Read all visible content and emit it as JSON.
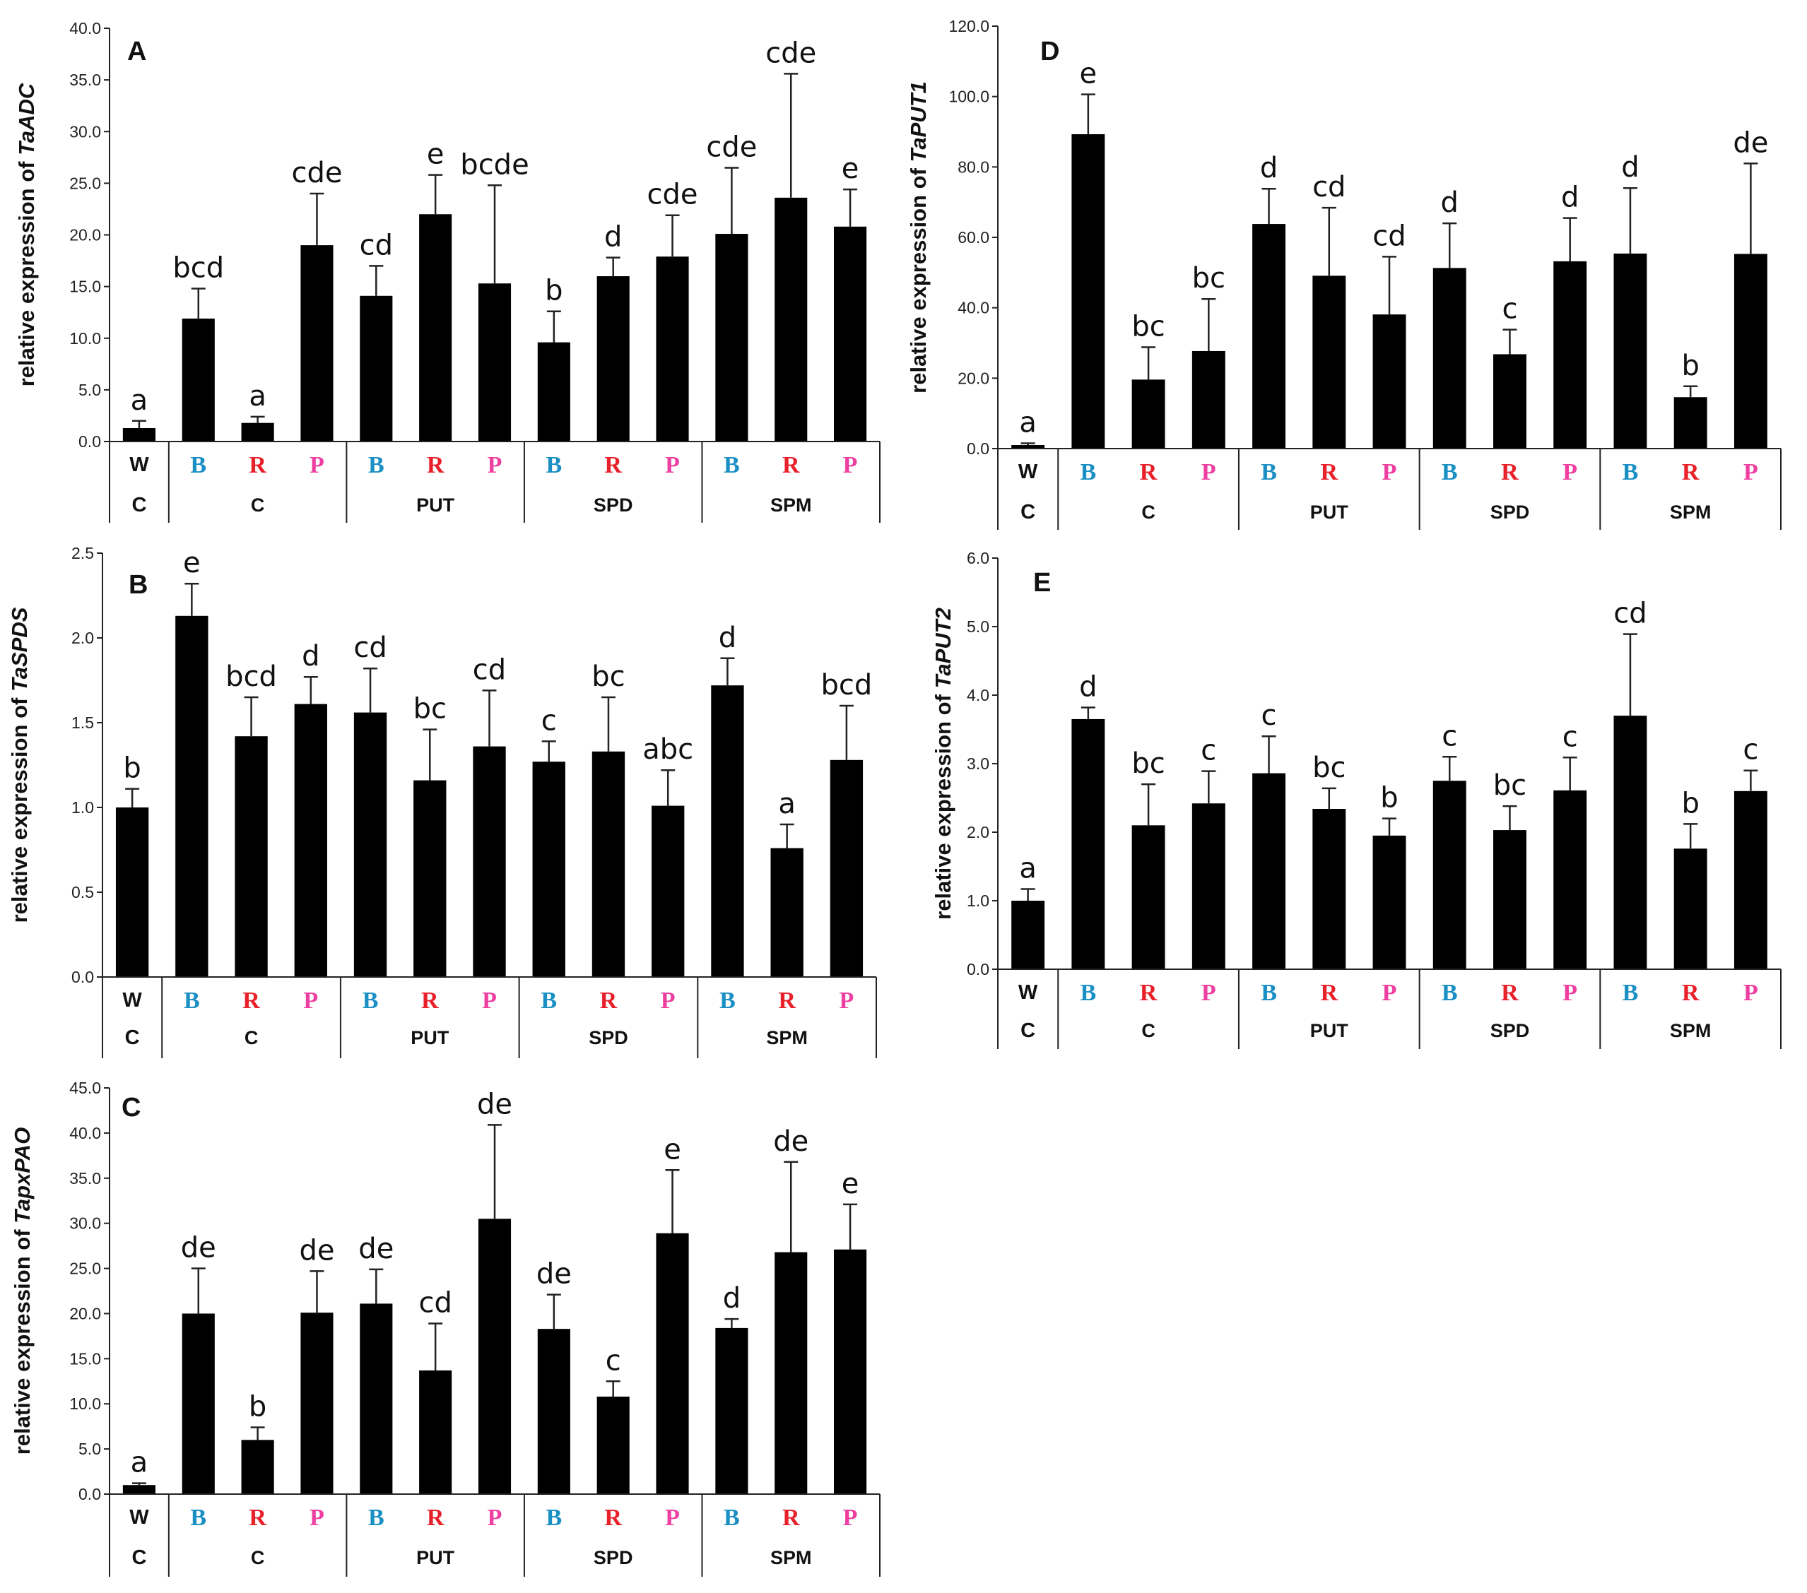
{
  "figure": {
    "light_colors": {
      "B": "#1a8fc4",
      "R": "#e8202a",
      "P": "#ee3fa0"
    },
    "wc_labels": [
      "W",
      "C"
    ],
    "light_labels": [
      "B",
      "R",
      "P"
    ],
    "groups": [
      "C",
      "PUT",
      "SPD",
      "SPM"
    ]
  },
  "chart_data": [
    {
      "type": "bar",
      "panel": "A",
      "ylabel_prefix": "relative expression of ",
      "gene": "TaADC",
      "ylim": [
        0,
        40
      ],
      "yticks": [
        "0.0",
        "5.0",
        "10.0",
        "15.0",
        "20.0",
        "25.0",
        "30.0",
        "35.0",
        "40.0"
      ],
      "categories": [
        "WC",
        "C-B",
        "C-R",
        "C-P",
        "PUT-B",
        "PUT-R",
        "PUT-P",
        "SPD-B",
        "SPD-R",
        "SPD-P",
        "SPM-B",
        "SPM-R",
        "SPM-P"
      ],
      "values": [
        1.3,
        11.9,
        1.8,
        19.0,
        14.1,
        22.0,
        15.3,
        9.6,
        16.0,
        17.9,
        20.1,
        23.6,
        20.8
      ],
      "errors": [
        0.7,
        2.9,
        0.6,
        5.0,
        2.9,
        3.8,
        9.5,
        3.0,
        1.8,
        4.0,
        6.4,
        12.0,
        3.6
      ],
      "significance": [
        "a",
        "bcd",
        "a",
        "cde",
        "cd",
        "e",
        "bcde",
        "b",
        "d",
        "cde",
        "cde",
        "cde",
        "e"
      ]
    },
    {
      "type": "bar",
      "panel": "B",
      "ylabel_prefix": "relative expression of ",
      "gene": "TaSPDS",
      "ylim": [
        0,
        2.5
      ],
      "yticks": [
        "0.0",
        "0.5",
        "1.0",
        "1.5",
        "2.0",
        "2.5"
      ],
      "categories": [
        "WC",
        "C-B",
        "C-R",
        "C-P",
        "PUT-B",
        "PUT-R",
        "PUT-P",
        "SPD-B",
        "SPD-R",
        "SPD-P",
        "SPM-B",
        "SPM-R",
        "SPM-P"
      ],
      "values": [
        1.0,
        2.13,
        1.42,
        1.61,
        1.56,
        1.16,
        1.36,
        1.27,
        1.33,
        1.01,
        1.72,
        0.76,
        1.28
      ],
      "errors": [
        0.11,
        0.19,
        0.23,
        0.16,
        0.26,
        0.3,
        0.33,
        0.12,
        0.32,
        0.21,
        0.16,
        0.14,
        0.32
      ],
      "significance": [
        "b",
        "e",
        "bcd",
        "d",
        "cd",
        "bc",
        "cd",
        "c",
        "bc",
        "abc",
        "d",
        "a",
        "bcd"
      ]
    },
    {
      "type": "bar",
      "panel": "C",
      "ylabel_prefix": "relative expression of ",
      "gene": "TapxPAO",
      "ylim": [
        0,
        45
      ],
      "yticks": [
        "0.0",
        "5.0",
        "10.0",
        "15.0",
        "20.0",
        "25.0",
        "30.0",
        "35.0",
        "40.0",
        "45.0"
      ],
      "categories": [
        "WC",
        "C-B",
        "C-R",
        "C-P",
        "PUT-B",
        "PUT-R",
        "PUT-P",
        "SPD-B",
        "SPD-R",
        "SPD-P",
        "SPM-B",
        "SPM-R",
        "SPM-P"
      ],
      "values": [
        1.0,
        20.0,
        6.0,
        20.1,
        21.1,
        13.7,
        30.5,
        18.3,
        10.8,
        28.9,
        18.4,
        26.8,
        27.1
      ],
      "errors": [
        0.2,
        5.0,
        1.4,
        4.6,
        3.8,
        5.2,
        10.4,
        3.8,
        1.7,
        7.0,
        1.0,
        10.0,
        5.0
      ],
      "significance": [
        "a",
        "de",
        "b",
        "de",
        "de",
        "cd",
        "de",
        "de",
        "c",
        "e",
        "d",
        "de",
        "e"
      ]
    },
    {
      "type": "bar",
      "panel": "D",
      "ylabel_prefix": "relative expression of ",
      "gene": "TaPUT1",
      "ylim": [
        0,
        120
      ],
      "yticks": [
        "0.0",
        "20.0",
        "40.0",
        "60.0",
        "80.0",
        "100.0",
        "120.0"
      ],
      "categories": [
        "WC",
        "C-B",
        "C-R",
        "C-P",
        "PUT-B",
        "PUT-R",
        "PUT-P",
        "SPD-B",
        "SPD-R",
        "SPD-P",
        "SPM-B",
        "SPM-R",
        "SPM-P"
      ],
      "values": [
        1.0,
        89.3,
        19.6,
        27.7,
        63.8,
        49.1,
        38.1,
        51.3,
        26.8,
        53.2,
        55.4,
        14.6,
        55.3
      ],
      "errors": [
        0.5,
        11.3,
        9.2,
        14.8,
        10.0,
        19.3,
        16.4,
        12.7,
        7.0,
        12.3,
        18.6,
        3.1,
        25.7
      ],
      "significance": [
        "a",
        "e",
        "bc",
        "bc",
        "d",
        "cd",
        "cd",
        "d",
        "c",
        "d",
        "d",
        "b",
        "de"
      ]
    },
    {
      "type": "bar",
      "panel": "E",
      "ylabel_prefix": "relative expression of ",
      "gene": "TaPUT2",
      "ylim": [
        0,
        6
      ],
      "yticks": [
        "0.0",
        "1.0",
        "2.0",
        "3.0",
        "4.0",
        "5.0",
        "6.0"
      ],
      "categories": [
        "WC",
        "C-B",
        "C-R",
        "C-P",
        "PUT-B",
        "PUT-R",
        "PUT-P",
        "SPD-B",
        "SPD-R",
        "SPD-P",
        "SPM-B",
        "SPM-R",
        "SPM-P"
      ],
      "values": [
        1.0,
        3.65,
        2.1,
        2.42,
        2.86,
        2.34,
        1.95,
        2.75,
        2.03,
        2.61,
        3.7,
        1.76,
        2.6
      ],
      "errors": [
        0.17,
        0.17,
        0.6,
        0.47,
        0.54,
        0.3,
        0.25,
        0.35,
        0.35,
        0.48,
        1.19,
        0.36,
        0.3
      ],
      "significance": [
        "a",
        "d",
        "bc",
        "c",
        "c",
        "bc",
        "b",
        "c",
        "bc",
        "c",
        "cd",
        "b",
        "c"
      ]
    }
  ]
}
